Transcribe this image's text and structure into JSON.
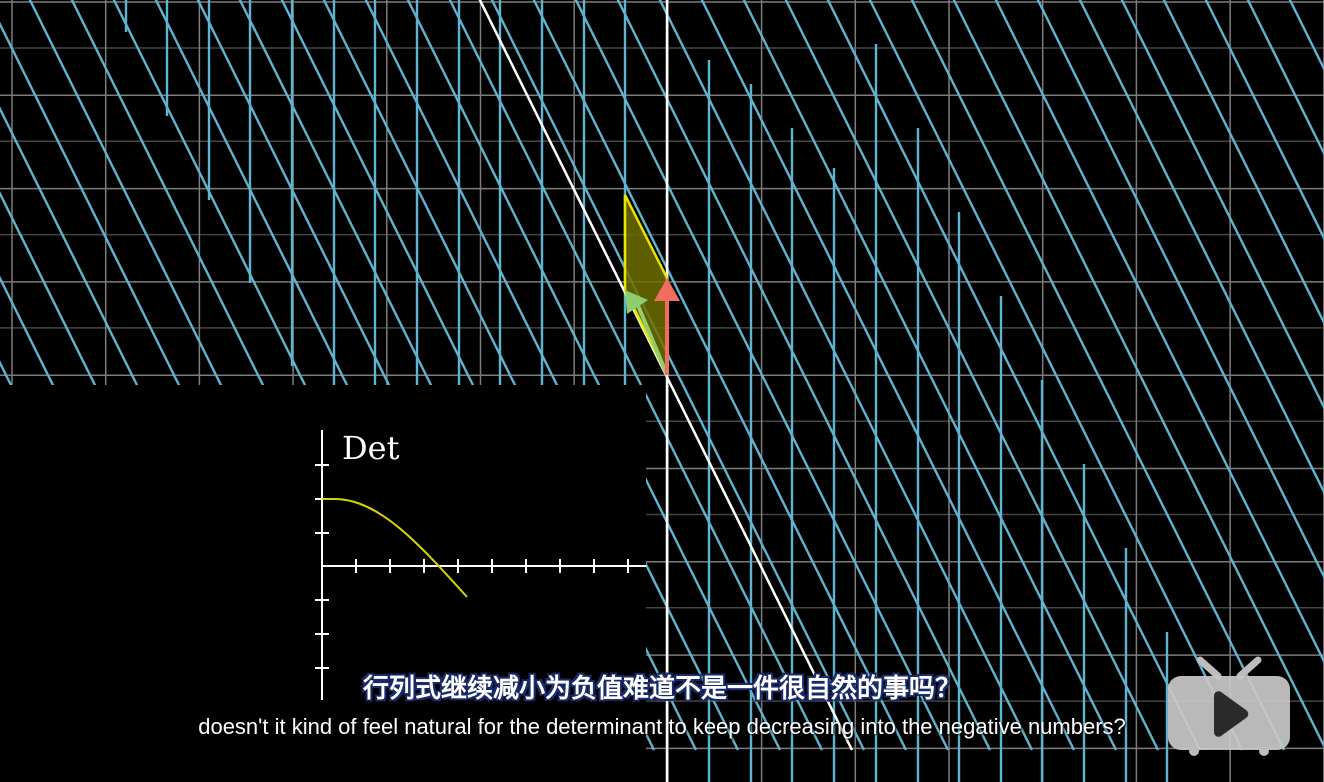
{
  "inset": {
    "label": "Det"
  },
  "subtitles": {
    "chinese": "行列式继续减小为负值难道不是一件很自然的事吗？",
    "english": "doesn't it kind of feel natural for the determinant to keep decreasing into the negative numbers?"
  },
  "colors": {
    "background": "#000000",
    "grid": "#7d7d7d",
    "axis": "#ffffff",
    "transformed_grid": "#5fb4cf",
    "area": "#d4d400",
    "vector_i": "#8fce6e",
    "vector_j": "#f06e5e",
    "det_curve": "#d4d400"
  },
  "icons": {
    "player_button": "tv-play-icon"
  }
}
